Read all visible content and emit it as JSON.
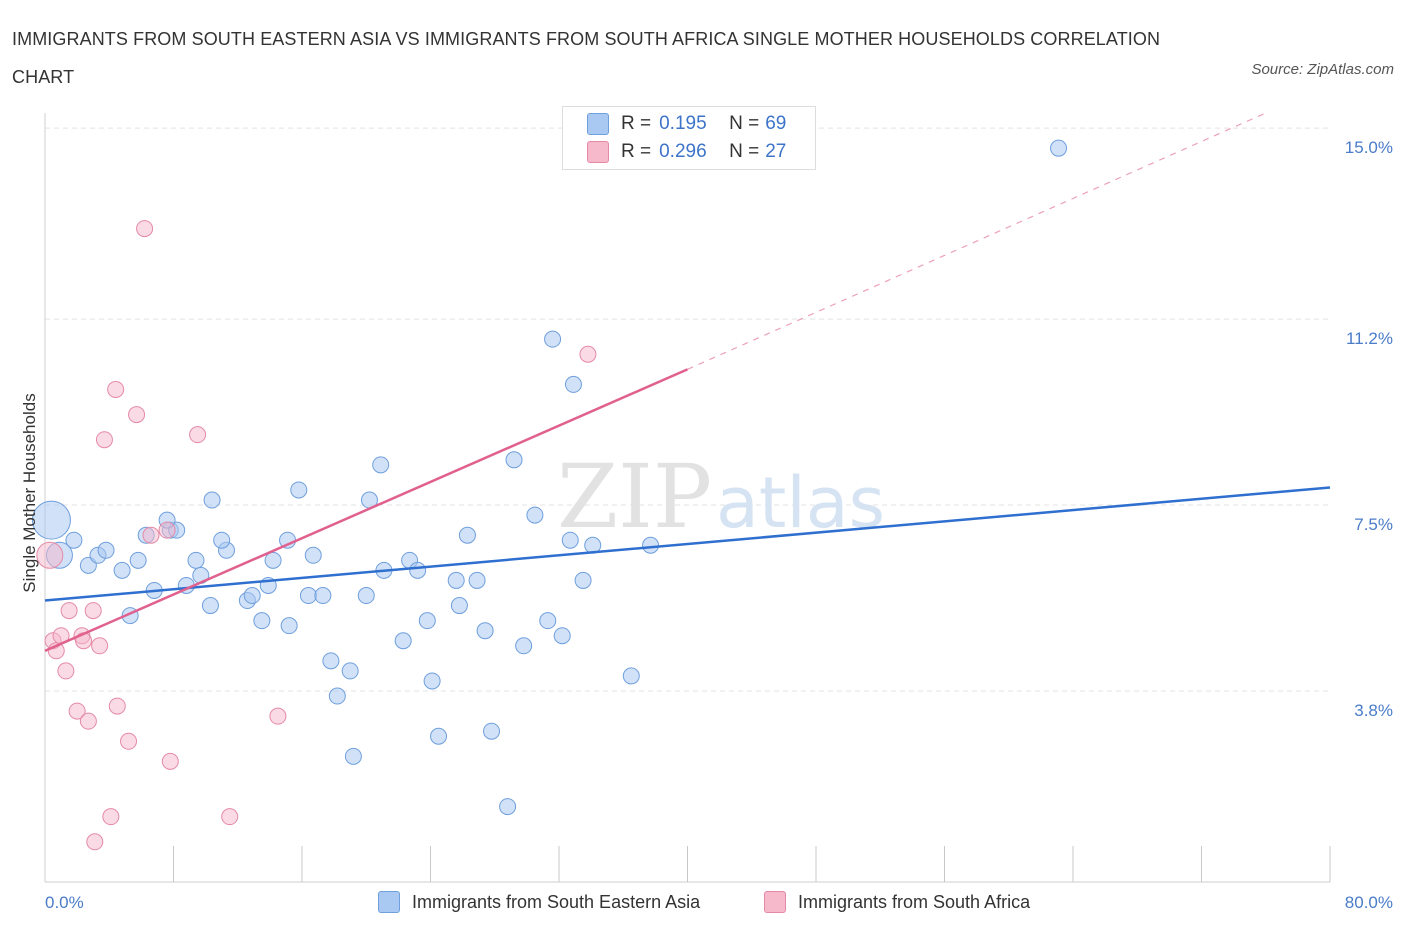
{
  "header": {
    "title": "IMMIGRANTS FROM SOUTH EASTERN ASIA VS IMMIGRANTS FROM SOUTH AFRICA SINGLE MOTHER HOUSEHOLDS CORRELATION CHART",
    "source": "Source: ZipAtlas.com"
  },
  "watermark": {
    "zip": "ZIP",
    "atlas": "atlas"
  },
  "legend": {
    "rows": [
      {
        "r_label": "R =",
        "r_value": "0.195",
        "n_label": "N =",
        "n_value": "69",
        "color": "#a9c8f2"
      },
      {
        "r_label": "R =",
        "r_value": "0.296",
        "n_label": "N =",
        "n_value": "27",
        "color": "#f6b8cb"
      }
    ]
  },
  "colors": {
    "blue_fill": "#a9c8f2",
    "blue_stroke": "#6f9fdc",
    "blue_line": "#2f6fcf",
    "pink_fill": "#f6b8cb",
    "pink_stroke": "#e58aa6",
    "pink_line": "#e0608e",
    "tick_text": "#4a7cc9",
    "grid": "#e3e3e3"
  },
  "chart_data": {
    "type": "scatter",
    "ylabel": "Single Mother Households",
    "xlim": [
      0,
      80
    ],
    "ylim": [
      0,
      15.3
    ],
    "x_tick_labels": [
      {
        "x": 0,
        "label": "0.0%"
      },
      {
        "x": 80,
        "label": "80.0%"
      }
    ],
    "x_minor_ticks": [
      8,
      16,
      24,
      32,
      40,
      48,
      56,
      64,
      72,
      80
    ],
    "y_ticks": [
      {
        "y": 3.8,
        "label": "3.8%"
      },
      {
        "y": 7.5,
        "label": "7.5%"
      },
      {
        "y": 11.2,
        "label": "11.2%"
      },
      {
        "y": 15.0,
        "label": "15.0%"
      }
    ],
    "grid": true,
    "legend_position": "top-center",
    "series": [
      {
        "name": "Immigrants from South Eastern Asia",
        "color": "#a9c8f2",
        "trend": {
          "x0": 0,
          "y0": 5.6,
          "x1": 80,
          "y1": 7.85
        },
        "points": [
          [
            0.4,
            7.2,
            3
          ],
          [
            0.9,
            6.5,
            2
          ],
          [
            1.8,
            6.8,
            1
          ],
          [
            2.7,
            6.3,
            1
          ],
          [
            3.3,
            6.5,
            1
          ],
          [
            3.8,
            6.6,
            1
          ],
          [
            4.8,
            6.2,
            1
          ],
          [
            5.3,
            5.3,
            1
          ],
          [
            5.8,
            6.4,
            1
          ],
          [
            6.8,
            5.8,
            1
          ],
          [
            6.3,
            6.9,
            1
          ],
          [
            7.8,
            7.0,
            1
          ],
          [
            8.2,
            7.0,
            1
          ],
          [
            7.6,
            7.2,
            1
          ],
          [
            9.4,
            6.4,
            1
          ],
          [
            9.7,
            6.1,
            1
          ],
          [
            8.8,
            5.9,
            1
          ],
          [
            10.3,
            5.5,
            1
          ],
          [
            10.4,
            7.6,
            1
          ],
          [
            11.3,
            6.6,
            1
          ],
          [
            11.0,
            6.8,
            1
          ],
          [
            12.6,
            5.6,
            1
          ],
          [
            12.9,
            5.7,
            1
          ],
          [
            13.5,
            5.2,
            1
          ],
          [
            13.9,
            5.9,
            1
          ],
          [
            14.2,
            6.4,
            1
          ],
          [
            15.1,
            6.8,
            1
          ],
          [
            15.2,
            5.1,
            1
          ],
          [
            15.8,
            7.8,
            1
          ],
          [
            16.4,
            5.7,
            1
          ],
          [
            16.7,
            6.5,
            1
          ],
          [
            17.3,
            5.7,
            1
          ],
          [
            17.8,
            4.4,
            1
          ],
          [
            18.2,
            3.7,
            1
          ],
          [
            19.0,
            4.2,
            1
          ],
          [
            19.2,
            2.5,
            1
          ],
          [
            20.0,
            5.7,
            1
          ],
          [
            20.2,
            7.6,
            1
          ],
          [
            20.9,
            8.3,
            1
          ],
          [
            21.1,
            6.2,
            1
          ],
          [
            22.3,
            4.8,
            1
          ],
          [
            22.7,
            6.4,
            1
          ],
          [
            23.2,
            6.2,
            1
          ],
          [
            23.8,
            5.2,
            1
          ],
          [
            24.1,
            4.0,
            1
          ],
          [
            24.5,
            2.9,
            1
          ],
          [
            25.6,
            6.0,
            1
          ],
          [
            25.8,
            5.5,
            1
          ],
          [
            26.3,
            6.9,
            1
          ],
          [
            26.9,
            6.0,
            1
          ],
          [
            27.4,
            5.0,
            1
          ],
          [
            27.8,
            3.0,
            1
          ],
          [
            28.8,
            1.5,
            1
          ],
          [
            29.2,
            8.4,
            1
          ],
          [
            29.8,
            4.7,
            1
          ],
          [
            30.5,
            7.3,
            1
          ],
          [
            31.3,
            5.2,
            1
          ],
          [
            31.6,
            10.8,
            1
          ],
          [
            32.2,
            4.9,
            1
          ],
          [
            32.7,
            6.8,
            1
          ],
          [
            32.9,
            9.9,
            1
          ],
          [
            33.5,
            6.0,
            1
          ],
          [
            34.1,
            6.7,
            1
          ],
          [
            36.5,
            4.1,
            1
          ],
          [
            37.7,
            6.7,
            1
          ],
          [
            63.1,
            14.6,
            1
          ]
        ]
      },
      {
        "name": "Immigrants from South Africa",
        "color": "#f6b8cb",
        "trend": {
          "x0": 0,
          "y0": 4.6,
          "x1": 40,
          "y1": 10.2,
          "dash_x1": 76,
          "dash_y1": 15.3
        },
        "points": [
          [
            0.3,
            6.5,
            2
          ],
          [
            0.5,
            4.8,
            1
          ],
          [
            0.7,
            4.6,
            1
          ],
          [
            1.0,
            4.9,
            1
          ],
          [
            1.3,
            4.2,
            1
          ],
          [
            1.5,
            5.4,
            1
          ],
          [
            2.0,
            3.4,
            1
          ],
          [
            2.3,
            4.9,
            1
          ],
          [
            2.4,
            4.8,
            1
          ],
          [
            2.7,
            3.2,
            1
          ],
          [
            3.0,
            5.4,
            1
          ],
          [
            3.1,
            0.8,
            1
          ],
          [
            3.4,
            4.7,
            1
          ],
          [
            3.7,
            8.8,
            1
          ],
          [
            4.1,
            1.3,
            1
          ],
          [
            4.4,
            9.8,
            1
          ],
          [
            4.5,
            3.5,
            1
          ],
          [
            5.2,
            2.8,
            1
          ],
          [
            5.7,
            9.3,
            1
          ],
          [
            6.2,
            13.0,
            1
          ],
          [
            6.6,
            6.9,
            1
          ],
          [
            7.6,
            7.0,
            1
          ],
          [
            7.8,
            2.4,
            1
          ],
          [
            9.5,
            8.9,
            1
          ],
          [
            11.5,
            1.3,
            1
          ],
          [
            14.5,
            3.3,
            1
          ],
          [
            33.8,
            10.5,
            1
          ]
        ]
      }
    ]
  }
}
